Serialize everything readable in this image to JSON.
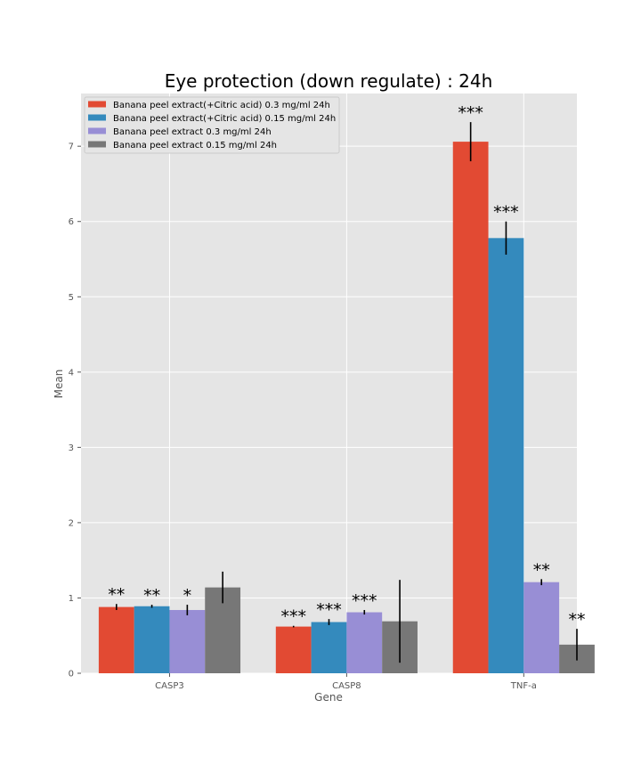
{
  "chart_data": {
    "type": "bar",
    "title": "Eye protection (down regulate) : 24h",
    "xlabel": "Gene",
    "ylabel": "Mean",
    "categories": [
      "CASP3",
      "CASP8",
      "TNF-a"
    ],
    "ylim": [
      0,
      7.7
    ],
    "yticks": [
      0,
      1,
      2,
      3,
      4,
      5,
      6,
      7
    ],
    "grid": true,
    "legend_position": "top-left",
    "style": "ggplot",
    "series": [
      {
        "name": "Banana peel extract(+Citric acid) 0.3 mg/ml 24h",
        "color": "#E24A33",
        "values": [
          0.88,
          0.62,
          7.06
        ],
        "errors": [
          0.04,
          0.01,
          0.26
        ],
        "significance": [
          "**",
          "***",
          "***"
        ]
      },
      {
        "name": "Banana peel extract(+Citric acid) 0.15 mg/ml 24h",
        "color": "#348ABD",
        "values": [
          0.89,
          0.68,
          5.78
        ],
        "errors": [
          0.02,
          0.04,
          0.22
        ],
        "significance": [
          "**",
          "***",
          "***"
        ]
      },
      {
        "name": "Banana peel extract 0.3 mg/ml 24h",
        "color": "#988ED5",
        "values": [
          0.84,
          0.81,
          1.21
        ],
        "errors": [
          0.07,
          0.03,
          0.04
        ],
        "significance": [
          "*",
          "***",
          "**"
        ]
      },
      {
        "name": "Banana peel extract 0.15 mg/ml 24h",
        "color": "#777777",
        "values": [
          1.14,
          0.69,
          0.38
        ],
        "errors": [
          0.21,
          0.55,
          0.21
        ],
        "significance": [
          "",
          "",
          "**"
        ]
      }
    ]
  }
}
